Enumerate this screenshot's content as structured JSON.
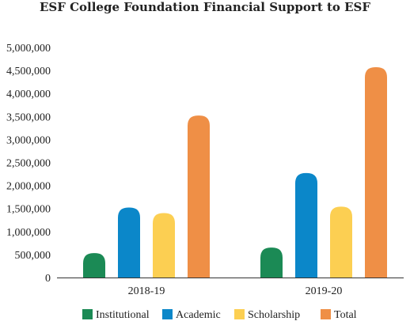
{
  "chart_data": {
    "type": "bar",
    "title": "ESF College Foundation Financial Support to ESF",
    "categories": [
      "2018-19",
      "2019-20"
    ],
    "series": [
      {
        "name": "Institutional",
        "values": [
          530000,
          650000
        ],
        "color": "#1b8a55"
      },
      {
        "name": "Academic",
        "values": [
          1520000,
          2270000
        ],
        "color": "#0b87c9"
      },
      {
        "name": "Scholarship",
        "values": [
          1400000,
          1540000
        ],
        "color": "#fccf52"
      },
      {
        "name": "Total",
        "values": [
          3520000,
          4570000
        ],
        "color": "#ef8f46"
      }
    ],
    "ylim": [
      0,
      5000000
    ],
    "yticks": [
      "0",
      "500,000",
      "1,000,000",
      "1,500,000",
      "2,000,000",
      "2,500,000",
      "3,000,000",
      "3,500,000",
      "4,000,000",
      "4,500,000",
      "5,000,000"
    ],
    "grid": false,
    "legend": "bottom"
  }
}
